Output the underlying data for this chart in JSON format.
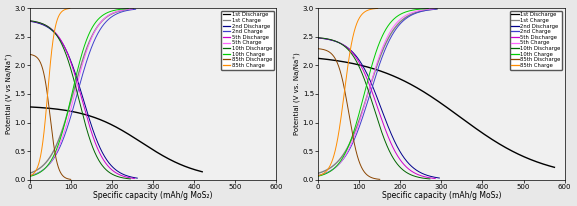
{
  "left_ylabel": "Potential (V vs Na/Na⁺)",
  "right_ylabel": "Potential (V vs. Na/Na⁺)",
  "xlabel": "Specific capacity (mAh/g MoS₂)",
  "xlim": [
    0,
    600
  ],
  "ylim": [
    0.0,
    3.0
  ],
  "yticks": [
    0.0,
    0.5,
    1.0,
    1.5,
    2.0,
    2.5,
    3.0
  ],
  "xticks": [
    0,
    100,
    200,
    300,
    400,
    500,
    600
  ],
  "legend_entries": [
    "1st Discharge",
    "1st Charge",
    "2nd Discharge",
    "2nd Charge",
    "5th Discharge",
    "5th Charge",
    "10th Discharge",
    "10th Charge",
    "85th Discharge",
    "85th Charge"
  ],
  "colors": {
    "1st_discharge": "#000000",
    "1st_charge": "#808080",
    "2nd_discharge": "#00008B",
    "2nd_charge": "#4040CC",
    "5th_discharge": "#CC00CC",
    "5th_charge": "#FF66FF",
    "10th_discharge": "#006400",
    "10th_charge": "#00CC00",
    "85th_discharge": "#8B4500",
    "85th_charge": "#FF8C00"
  },
  "bg_color": "#f0f0f0",
  "fig_bg": "#e8e8e8"
}
